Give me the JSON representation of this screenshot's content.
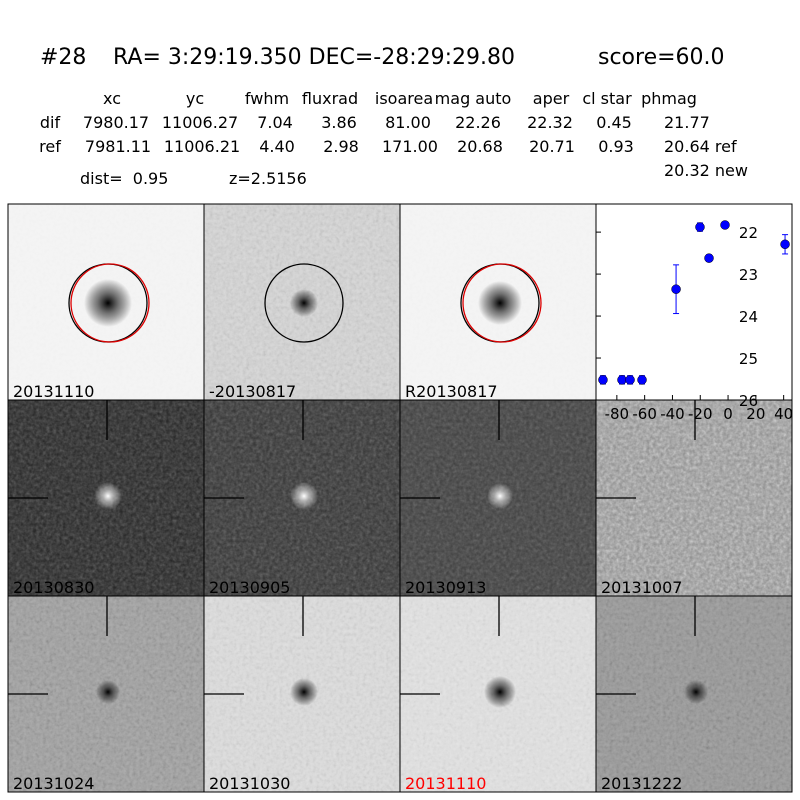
{
  "header": {
    "id": "#28",
    "coords": "RA= 3:29:19.350 DEC=-28:29:29.80",
    "score": "score=60.0"
  },
  "table": {
    "columns": [
      "xc",
      "yc",
      "fwhm",
      "fluxrad",
      "isoarea",
      "mag auto",
      "aper",
      "cl star",
      "phmag"
    ],
    "rows": [
      [
        "dif",
        "7980.17",
        "11006.27",
        "7.04",
        "3.86",
        "81.00",
        "22.26",
        "22.32",
        "0.45",
        "21.77"
      ],
      [
        "ref",
        "7981.11",
        "11006.21",
        "4.40",
        "2.98",
        "171.00",
        "20.68",
        "20.71",
        "0.93",
        "20.64 ref"
      ]
    ],
    "extra": "20.32 new"
  },
  "dist": "dist=  0.95",
  "redshift": "z=2.5156",
  "panels": [
    {
      "label": "20131110"
    },
    {
      "label": "-20130817"
    },
    {
      "label": "R20130817"
    },
    {
      "label": "20130830"
    },
    {
      "label": "20130905"
    },
    {
      "label": "20130913"
    },
    {
      "label": "20131007"
    },
    {
      "label": "20131024"
    },
    {
      "label": "20131030"
    },
    {
      "label": "20131110",
      "label_color": "#ff0000"
    },
    {
      "label": "20131222"
    }
  ],
  "chart_data": {
    "type": "scatter",
    "color": "#0000ff",
    "x": [
      -90,
      -76.3,
      -70.5,
      -61.9,
      -37.4,
      -20.2,
      -13.7,
      -2.2,
      41
    ],
    "values": [
      25.52,
      25.52,
      25.52,
      25.52,
      23.36,
      21.88,
      22.62,
      21.83,
      22.29
    ],
    "errors": [
      0.1,
      0.1,
      0.1,
      0.1,
      0.58,
      0.1,
      0.08,
      0.05,
      0.23
    ],
    "xlim": [
      -95,
      46
    ],
    "ylim": [
      26,
      21.33
    ],
    "xticks": [
      -80,
      -60,
      -40,
      -20,
      0,
      20,
      40
    ],
    "yticks": [
      22,
      23,
      24,
      25,
      26
    ]
  }
}
